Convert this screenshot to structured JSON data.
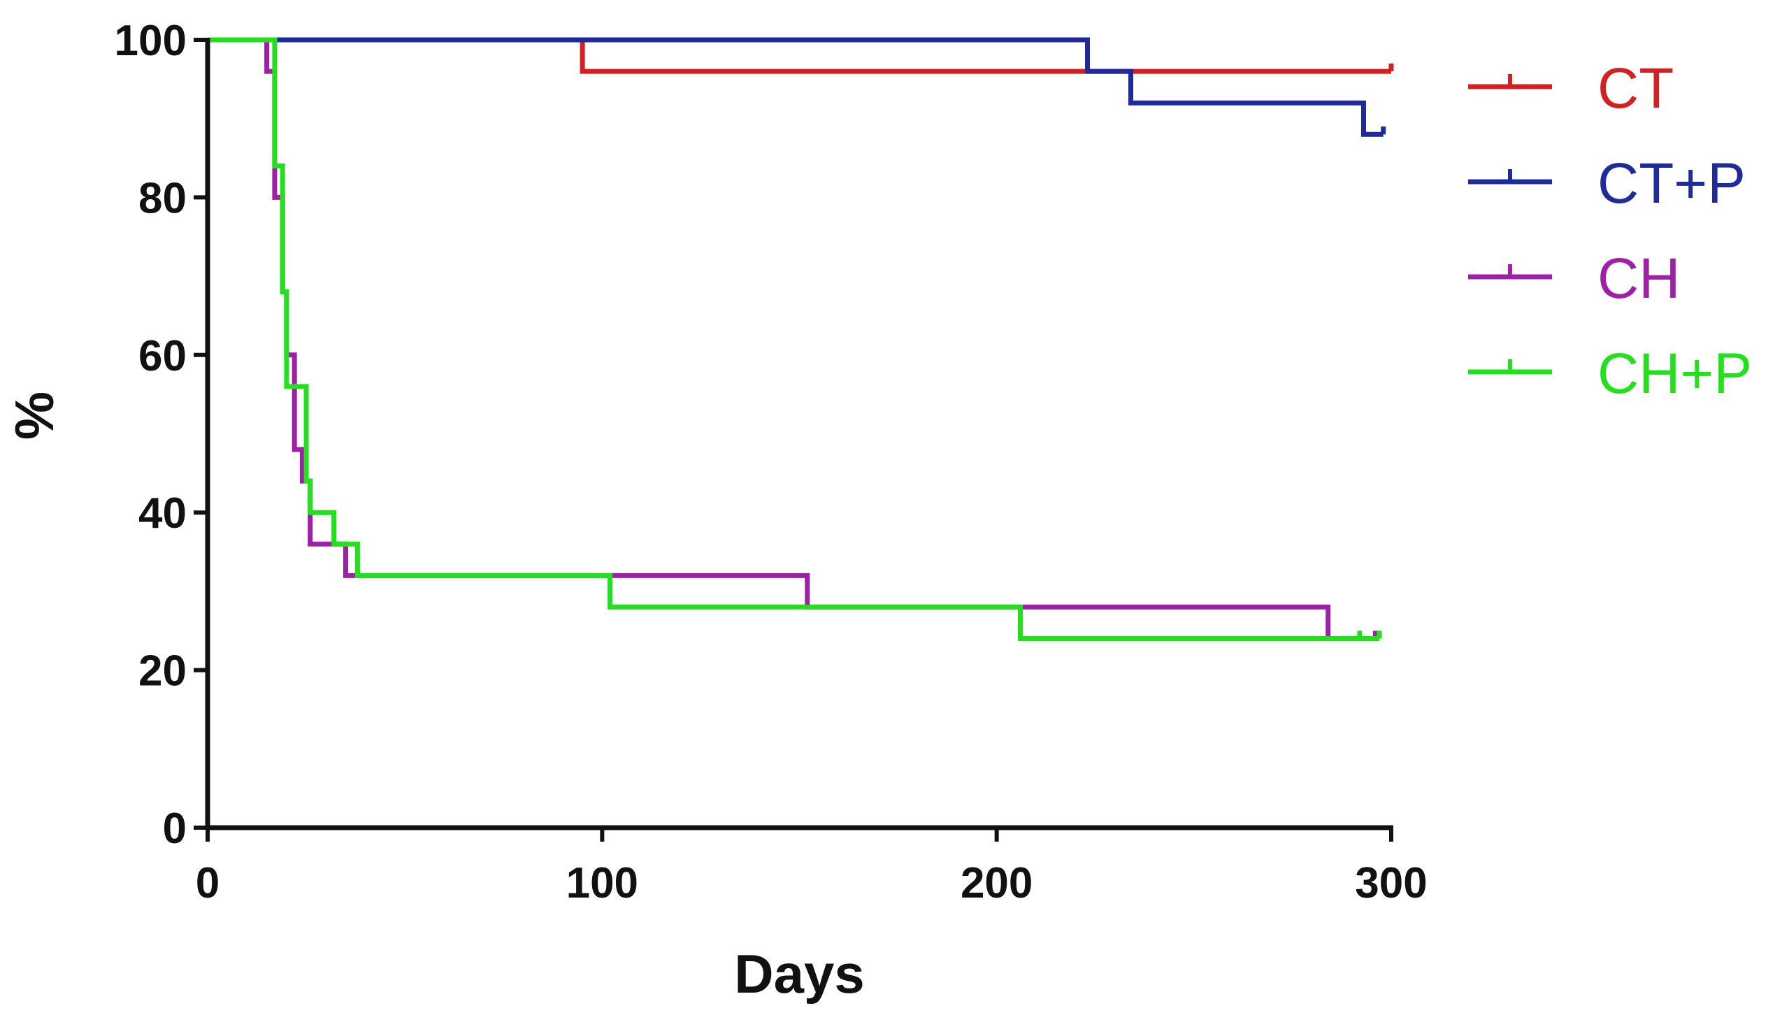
{
  "chart_data": {
    "type": "line",
    "subtype": "kaplan-meier step",
    "xlabel": "Days",
    "ylabel": "%",
    "xlim": [
      0,
      300
    ],
    "ylim": [
      0,
      100
    ],
    "xticks": [
      "0",
      "100",
      "200",
      "300"
    ],
    "yticks": [
      "0",
      "20",
      "40",
      "60",
      "80",
      "100"
    ],
    "grid": false,
    "legend_position": "top-right",
    "series": [
      {
        "name": "CT",
        "color": "#d42020",
        "steps": [
          [
            0,
            100
          ],
          [
            95,
            100
          ],
          [
            95,
            96
          ],
          [
            300,
            96
          ]
        ],
        "censor": [
          [
            300,
            96
          ],
          [
            300,
            97
          ]
        ]
      },
      {
        "name": "CT+P",
        "color": "#1f2a9c",
        "steps": [
          [
            0,
            100
          ],
          [
            223,
            100
          ],
          [
            223,
            96
          ],
          [
            234,
            96
          ],
          [
            234,
            92
          ],
          [
            293,
            92
          ],
          [
            293,
            88
          ],
          [
            298,
            88
          ]
        ],
        "censor": [
          [
            298,
            88
          ],
          [
            298,
            89
          ]
        ]
      },
      {
        "name": "CH",
        "color": "#a01fa8",
        "steps": [
          [
            0,
            100
          ],
          [
            15,
            100
          ],
          [
            15,
            96
          ],
          [
            17,
            96
          ],
          [
            17,
            80
          ],
          [
            19,
            80
          ],
          [
            19,
            68
          ],
          [
            20,
            68
          ],
          [
            20,
            60
          ],
          [
            22,
            60
          ],
          [
            22,
            48
          ],
          [
            24,
            48
          ],
          [
            24,
            44
          ],
          [
            26,
            44
          ],
          [
            26,
            36
          ],
          [
            35,
            36
          ],
          [
            35,
            32
          ],
          [
            152,
            32
          ],
          [
            152,
            28
          ],
          [
            284,
            28
          ],
          [
            284,
            24
          ],
          [
            296,
            24
          ]
        ],
        "censor": [
          [
            296,
            24
          ],
          [
            296,
            25
          ]
        ]
      },
      {
        "name": "CH+P",
        "color": "#22e01c",
        "steps": [
          [
            0,
            100
          ],
          [
            17,
            100
          ],
          [
            17,
            84
          ],
          [
            19,
            84
          ],
          [
            19,
            68
          ],
          [
            20,
            68
          ],
          [
            20,
            56
          ],
          [
            25,
            56
          ],
          [
            25,
            44
          ],
          [
            26,
            44
          ],
          [
            26,
            40
          ],
          [
            32,
            40
          ],
          [
            32,
            36
          ],
          [
            38,
            36
          ],
          [
            38,
            32
          ],
          [
            102,
            32
          ],
          [
            102,
            28
          ],
          [
            206,
            28
          ],
          [
            206,
            24
          ],
          [
            297,
            24
          ]
        ],
        "censor": [
          [
            292,
            24
          ],
          [
            292,
            25
          ],
          [
            297,
            24
          ],
          [
            297,
            25
          ]
        ]
      }
    ]
  }
}
